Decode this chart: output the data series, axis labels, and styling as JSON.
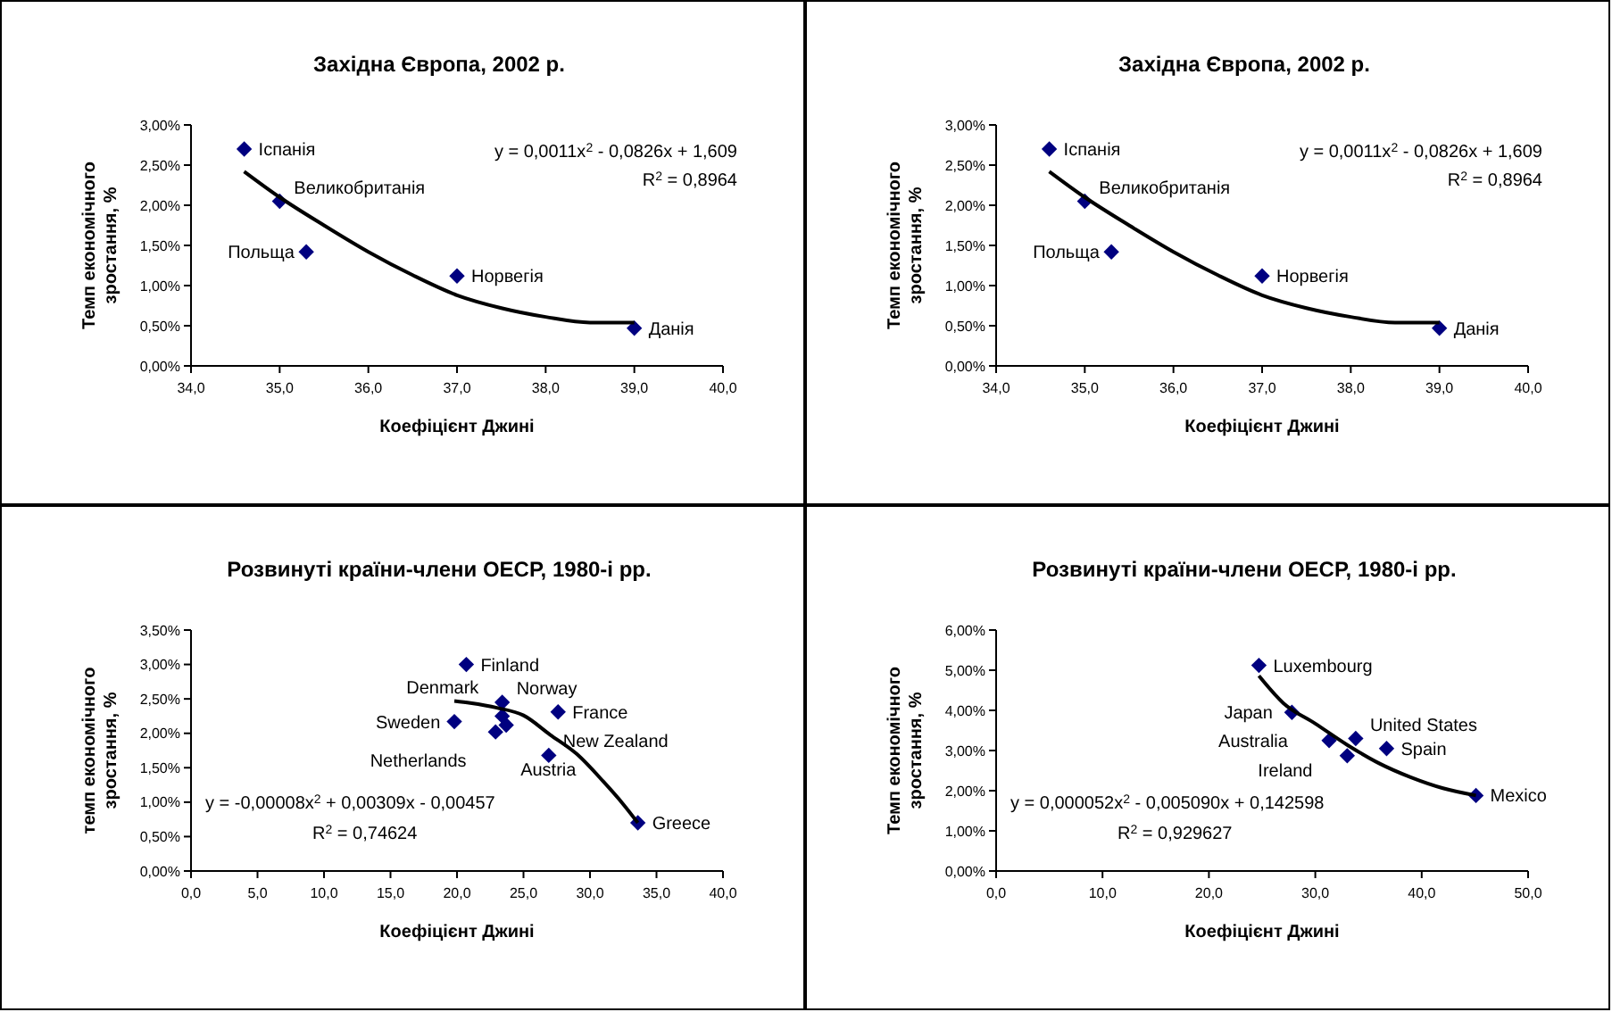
{
  "chart_data": [
    {
      "type": "scatter",
      "title": "Західна Європа, 2002 р.",
      "xlabel": "Коефіцієнт Джині",
      "ylabel": "Темп економічного зростання, %",
      "marker": "diamond",
      "grid": false,
      "xlim": [
        34,
        40
      ],
      "xticks": [
        {
          "value": 34,
          "label": "34,0"
        },
        {
          "value": 35,
          "label": "35,0"
        },
        {
          "value": 36,
          "label": "36,0"
        },
        {
          "value": 37,
          "label": "37,0"
        },
        {
          "value": 38,
          "label": "38,0"
        },
        {
          "value": 39,
          "label": "39,0"
        },
        {
          "value": 40,
          "label": "40,0"
        }
      ],
      "ylim": [
        0,
        0.03
      ],
      "yticks": [
        {
          "value": 0,
          "label": "0,00%"
        },
        {
          "value": 0.005,
          "label": "0,50%"
        },
        {
          "value": 0.01,
          "label": "1,00%"
        },
        {
          "value": 0.015,
          "label": "1,50%"
        },
        {
          "value": 0.02,
          "label": "2,00%"
        },
        {
          "value": 0.025,
          "label": "2,50%"
        },
        {
          "value": 0.03,
          "label": "3,00%"
        }
      ],
      "series": [
        {
          "type": "scatter",
          "color": "#000080",
          "x": [
            34.6,
            35.0,
            35.3,
            37.0,
            39.0
          ],
          "values": [
            0.027,
            0.0205,
            0.0142,
            0.0112,
            0.0047
          ]
        },
        {
          "type": "line",
          "color": "#000000",
          "marker": "none",
          "x": [
            34.6,
            35.0,
            35.5,
            36.0,
            36.5,
            37.0,
            37.5,
            38.0,
            38.5,
            39.0
          ],
          "values": [
            0.0242,
            0.021,
            0.0175,
            0.0142,
            0.0113,
            0.0088,
            0.0072,
            0.0061,
            0.0054,
            0.0054
          ]
        }
      ],
      "annotations": [
        {
          "text": "Іспанія",
          "x": 34.6,
          "y": 0.027
        },
        {
          "text": "Великобританія",
          "x": 35.0,
          "y": 0.0205
        },
        {
          "text": "Польща",
          "x": 35.3,
          "y": 0.0142
        },
        {
          "text": "Норвегія",
          "x": 37.0,
          "y": 0.0112
        },
        {
          "text": "Данія",
          "x": 39.0,
          "y": 0.0047
        },
        "y = 0,0011x$^{2}$ - 0,0826x + 1,609",
        "R$^{2}$ = 0,8964"
      ]
    },
    {
      "type": "scatter",
      "title": "Західна Європа, 2002 р.",
      "xlabel": "Коефіцієнт Джині",
      "ylabel": "Темп економічного зростання, %",
      "marker": "diamond",
      "grid": false,
      "xlim": [
        34,
        40
      ],
      "xticks": [
        {
          "value": 34,
          "label": "34,0"
        },
        {
          "value": 35,
          "label": "35,0"
        },
        {
          "value": 36,
          "label": "36,0"
        },
        {
          "value": 37,
          "label": "37,0"
        },
        {
          "value": 38,
          "label": "38,0"
        },
        {
          "value": 39,
          "label": "39,0"
        },
        {
          "value": 40,
          "label": "40,0"
        }
      ],
      "ylim": [
        0,
        0.03
      ],
      "yticks": [
        {
          "value": 0,
          "label": "0,00%"
        },
        {
          "value": 0.005,
          "label": "0,50%"
        },
        {
          "value": 0.01,
          "label": "1,00%"
        },
        {
          "value": 0.015,
          "label": "1,50%"
        },
        {
          "value": 0.02,
          "label": "2,00%"
        },
        {
          "value": 0.025,
          "label": "2,50%"
        },
        {
          "value": 0.03,
          "label": "3,00%"
        }
      ],
      "series": [
        {
          "type": "scatter",
          "color": "#000080",
          "x": [
            34.6,
            35.0,
            35.3,
            37.0,
            39.0
          ],
          "values": [
            0.027,
            0.0205,
            0.0142,
            0.0112,
            0.0047
          ]
        },
        {
          "type": "line",
          "color": "#000000",
          "marker": "none",
          "x": [
            34.6,
            35.0,
            35.5,
            36.0,
            36.5,
            37.0,
            37.5,
            38.0,
            38.5,
            39.0
          ],
          "values": [
            0.0242,
            0.021,
            0.0175,
            0.0142,
            0.0113,
            0.0088,
            0.0072,
            0.0061,
            0.0054,
            0.0054
          ]
        }
      ],
      "annotations": [
        {
          "text": "Іспанія",
          "x": 34.6,
          "y": 0.027
        },
        {
          "text": "Великобританія",
          "x": 35.0,
          "y": 0.0205
        },
        {
          "text": "Польща",
          "x": 35.3,
          "y": 0.0142
        },
        {
          "text": "Норвегія",
          "x": 37.0,
          "y": 0.0112
        },
        {
          "text": "Данія",
          "x": 39.0,
          "y": 0.0047
        },
        "y = 0,0011x$^{2}$ - 0,0826x + 1,609",
        "R$^{2}$ = 0,8964"
      ]
    },
    {
      "type": "scatter",
      "title": "Розвинуті країни-члени ОЕСР, 1980-і рр.",
      "xlabel": "Коефіцієнт Джині",
      "ylabel": "темп економічного зростання, %",
      "marker": "diamond",
      "grid": false,
      "xlim": [
        0,
        40
      ],
      "xticks": [
        {
          "value": 0,
          "label": "0,0"
        },
        {
          "value": 5,
          "label": "5,0"
        },
        {
          "value": 10,
          "label": "10,0"
        },
        {
          "value": 15,
          "label": "15,0"
        },
        {
          "value": 20,
          "label": "20,0"
        },
        {
          "value": 25,
          "label": "25,0"
        },
        {
          "value": 30,
          "label": "30,0"
        },
        {
          "value": 35,
          "label": "35,0"
        },
        {
          "value": 40,
          "label": "40,0"
        }
      ],
      "ylim": [
        0,
        0.035
      ],
      "yticks": [
        {
          "value": 0,
          "label": "0,00%"
        },
        {
          "value": 0.005,
          "label": "0,50%"
        },
        {
          "value": 0.01,
          "label": "1,00%"
        },
        {
          "value": 0.015,
          "label": "1,50%"
        },
        {
          "value": 0.02,
          "label": "2,00%"
        },
        {
          "value": 0.025,
          "label": "2,50%"
        },
        {
          "value": 0.03,
          "label": "3,00%"
        },
        {
          "value": 0.035,
          "label": "3,50%"
        }
      ],
      "series": [
        {
          "type": "scatter",
          "color": "#000080",
          "x": [
            20.7,
            23.4,
            23.4,
            27.6,
            19.8,
            23.7,
            22.9,
            26.9,
            33.6
          ],
          "values": [
            0.03,
            0.0245,
            0.0225,
            0.0231,
            0.0217,
            0.0212,
            0.0202,
            0.0168,
            0.007
          ]
        },
        {
          "type": "line",
          "color": "#000000",
          "marker": "none",
          "x": [
            19.8,
            21.0,
            23.0,
            25.0,
            27.0,
            29.0,
            31.0,
            32.5,
            33.6
          ],
          "values": [
            0.0247,
            0.0244,
            0.0237,
            0.0226,
            0.0198,
            0.017,
            0.013,
            0.0097,
            0.007
          ]
        }
      ],
      "annotations": [
        {
          "text": "Finland",
          "x": 20.7,
          "y": 0.03
        },
        {
          "text": "Norway",
          "x": 23.4,
          "y": 0.0245
        },
        {
          "text": "Netherlands",
          "x": 23.4,
          "y": 0.0225
        },
        {
          "text": "France",
          "x": 27.6,
          "y": 0.0231
        },
        {
          "text": "Sweden",
          "x": 19.8,
          "y": 0.0217
        },
        {
          "text": "Austria",
          "x": 23.7,
          "y": 0.0212
        },
        {
          "text": "Denmark",
          "x": 22.9,
          "y": 0.0202
        },
        {
          "text": "New Zealand",
          "x": 26.9,
          "y": 0.0168
        },
        {
          "text": "Greece",
          "x": 33.6,
          "y": 0.007
        },
        "y = -0,00008x$^{2}$ + 0,00309x - 0,00457",
        "R$^{2}$ = 0,74624"
      ]
    },
    {
      "type": "scatter",
      "title": "Розвинуті країни-члени ОЕСР, 1980-і рр.",
      "xlabel": "Коефіцієнт Джині",
      "ylabel": "Темп економічного зростання, %",
      "marker": "diamond",
      "grid": false,
      "xlim": [
        0,
        50
      ],
      "xticks": [
        {
          "value": 0,
          "label": "0,0"
        },
        {
          "value": 10,
          "label": "10,0"
        },
        {
          "value": 20,
          "label": "20,0"
        },
        {
          "value": 30,
          "label": "30,0"
        },
        {
          "value": 40,
          "label": "40,0"
        },
        {
          "value": 50,
          "label": "50,0"
        }
      ],
      "ylim": [
        0,
        0.06
      ],
      "yticks": [
        {
          "value": 0,
          "label": "0,00%"
        },
        {
          "value": 0.01,
          "label": "1,00%"
        },
        {
          "value": 0.02,
          "label": "2,00%"
        },
        {
          "value": 0.03,
          "label": "3,00%"
        },
        {
          "value": 0.04,
          "label": "4,00%"
        },
        {
          "value": 0.05,
          "label": "5,00%"
        },
        {
          "value": 0.06,
          "label": "6,00%"
        }
      ],
      "series": [
        {
          "type": "scatter",
          "color": "#000080",
          "x": [
            24.7,
            27.8,
            31.3,
            33.8,
            33.0,
            36.7,
            45.1
          ],
          "values": [
            0.0512,
            0.0395,
            0.0325,
            0.033,
            0.0287,
            0.0305,
            0.0188
          ]
        },
        {
          "type": "line",
          "color": "#000000",
          "marker": "none",
          "x": [
            24.7,
            27.0,
            30.0,
            33.0,
            36.0,
            39.0,
            42.0,
            45.1
          ],
          "values": [
            0.0486,
            0.0418,
            0.0367,
            0.0314,
            0.0268,
            0.0233,
            0.0206,
            0.0188
          ]
        }
      ],
      "annotations": [
        {
          "text": "Luxembourg",
          "x": 24.7,
          "y": 0.0512
        },
        {
          "text": "Japan",
          "x": 27.8,
          "y": 0.0395
        },
        {
          "text": "Australia",
          "x": 31.3,
          "y": 0.0325
        },
        {
          "text": "United States",
          "x": 33.8,
          "y": 0.033
        },
        {
          "text": "Ireland",
          "x": 33.0,
          "y": 0.0287
        },
        {
          "text": "Spain",
          "x": 36.7,
          "y": 0.0305
        },
        {
          "text": "Mexico",
          "x": 45.1,
          "y": 0.0188
        },
        "y = 0,000052x$^{2}$ - 0,005090x + 0,142598",
        "R$^{2}$ = 0,929627"
      ]
    }
  ]
}
